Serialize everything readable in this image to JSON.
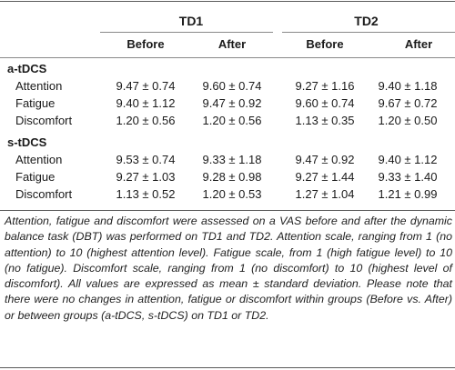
{
  "groups": [
    {
      "label": "TD1",
      "columns": [
        "Before",
        "After"
      ]
    },
    {
      "label": "TD2",
      "columns": [
        "Before",
        "After"
      ]
    }
  ],
  "sections": [
    {
      "label": "a-tDCS",
      "rows": [
        {
          "label": "Attention",
          "values": [
            "9.47 ± 0.74",
            "9.60 ± 0.74",
            "9.27 ± 1.16",
            "9.40 ± 1.18"
          ]
        },
        {
          "label": "Fatigue",
          "values": [
            "9.40 ± 1.12",
            "9.47 ± 0.92",
            "9.60 ± 0.74",
            "9.67 ± 0.72"
          ]
        },
        {
          "label": "Discomfort",
          "values": [
            "1.20 ± 0.56",
            "1.20 ± 0.56",
            "1.13 ± 0.35",
            "1.20 ± 0.50"
          ]
        }
      ]
    },
    {
      "label": "s-tDCS",
      "rows": [
        {
          "label": "Attention",
          "values": [
            "9.53 ± 0.74",
            "9.33 ± 1.18",
            "9.47 ± 0.92",
            "9.40 ± 1.12"
          ]
        },
        {
          "label": "Fatigue",
          "values": [
            "9.27 ± 1.03",
            "9.28 ± 0.98",
            "9.27 ± 1.44",
            "9.33 ± 1.40"
          ]
        },
        {
          "label": "Discomfort",
          "values": [
            "1.13 ± 0.52",
            "1.20 ± 0.53",
            "1.27 ± 1.04",
            "1.21 ± 0.99"
          ]
        }
      ]
    }
  ],
  "caption": "Attention, fatigue and discomfort were assessed on a VAS before and after the dynamic balance task (DBT) was performed on TD1 and TD2. Attention scale, ranging from 1 (no attention) to 10 (highest attention level). Fatigue scale, from 1 (high fatigue level) to 10 (no fatigue). Discomfort scale, ranging from 1 (no discomfort) to 10 (highest level of discomfort). All values are expressed as mean ± standard deviation. Please note that there were no changes in attention, fatigue or discomfort within groups (Before vs. After) or between groups (a-tDCS, s-tDCS) on TD1 or TD2."
}
